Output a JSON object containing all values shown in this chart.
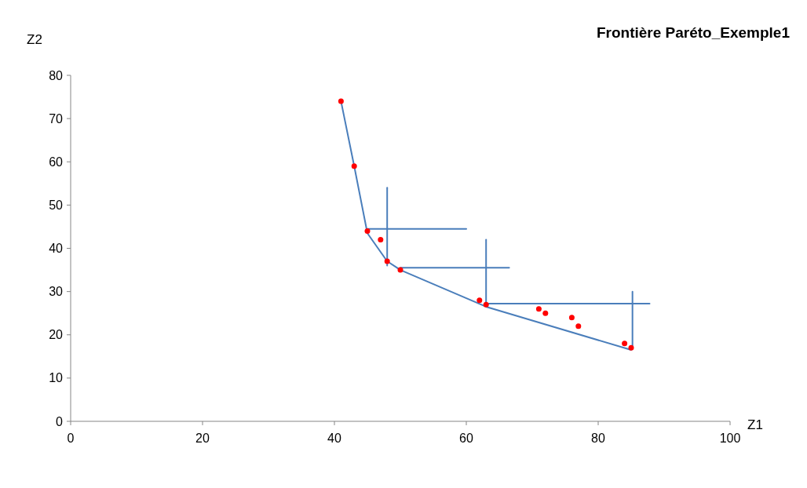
{
  "chart_data": {
    "type": "scatter",
    "title": "Frontière Paréto_Exemple1",
    "xlabel": "Z1",
    "ylabel": "Z2",
    "xlim": [
      0,
      100
    ],
    "ylim": [
      0,
      80
    ],
    "xticks": [
      0,
      20,
      40,
      60,
      80,
      100
    ],
    "yticks": [
      0,
      10,
      20,
      30,
      40,
      50,
      60,
      70,
      80
    ],
    "grid": false,
    "series": [
      {
        "type": "line",
        "color": "#4a7ebb",
        "marker": "none",
        "x": [
          41,
          43,
          45,
          48,
          50,
          63,
          85
        ],
        "values": [
          74,
          59,
          43.5,
          37,
          35,
          26.5,
          16.5
        ]
      },
      {
        "type": "line",
        "color": "#4a7ebb",
        "marker": "none",
        "x": [
          48,
          48
        ],
        "values": [
          54,
          36
        ]
      },
      {
        "type": "line",
        "color": "#4a7ebb",
        "marker": "none",
        "x": [
          45,
          60
        ],
        "values": [
          44.5,
          44.5
        ]
      },
      {
        "type": "line",
        "color": "#4a7ebb",
        "marker": "none",
        "x": [
          63,
          63
        ],
        "values": [
          42,
          27
        ]
      },
      {
        "type": "line",
        "color": "#4a7ebb",
        "marker": "none",
        "x": [
          50,
          66.5
        ],
        "values": [
          35.5,
          35.5
        ]
      },
      {
        "type": "line",
        "color": "#4a7ebb",
        "marker": "none",
        "x": [
          85.2,
          85.2
        ],
        "values": [
          30,
          17
        ]
      },
      {
        "type": "line",
        "color": "#4a7ebb",
        "marker": "none",
        "x": [
          63,
          87.8
        ],
        "values": [
          27.2,
          27.2
        ]
      },
      {
        "color": "#ff0000",
        "marker": "circle",
        "x": [
          41,
          43,
          45,
          47,
          48,
          50,
          62,
          63,
          71,
          72,
          76,
          77,
          84,
          85
        ],
        "values": [
          74,
          59,
          44,
          42,
          37,
          35,
          28,
          27,
          26,
          25,
          24,
          22,
          18,
          17
        ]
      }
    ]
  }
}
